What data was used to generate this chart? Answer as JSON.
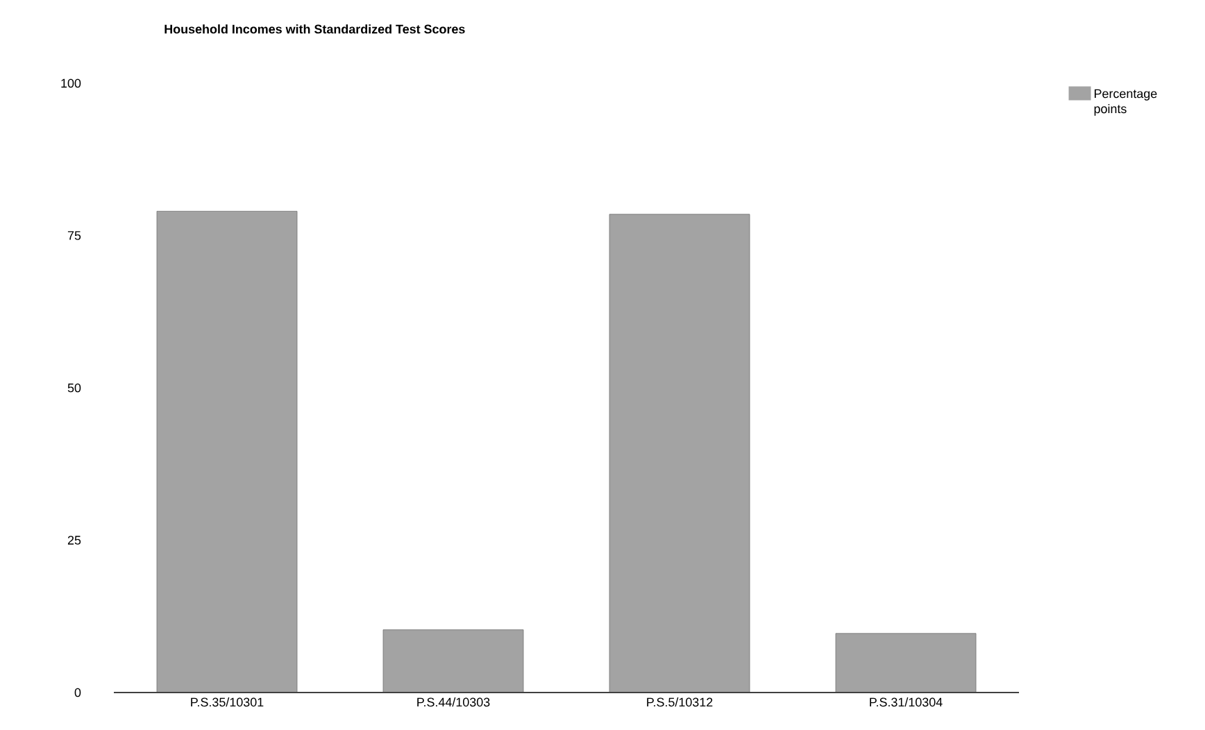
{
  "chart_data": {
    "type": "bar",
    "title": "Household Incomes with Standardized Test Scores",
    "categories": [
      "P.S.35/10301",
      "P.S.44/10303",
      "P.S.5/10312",
      "P.S.31/10304"
    ],
    "series": [
      {
        "name": "Percentage points",
        "color": "#a3a3a3",
        "values": [
          79,
          10.3,
          78.5,
          9.7
        ]
      }
    ],
    "ylim": [
      0,
      100
    ],
    "yticks": [
      0,
      25,
      50,
      75,
      100
    ],
    "legend": "top right"
  }
}
